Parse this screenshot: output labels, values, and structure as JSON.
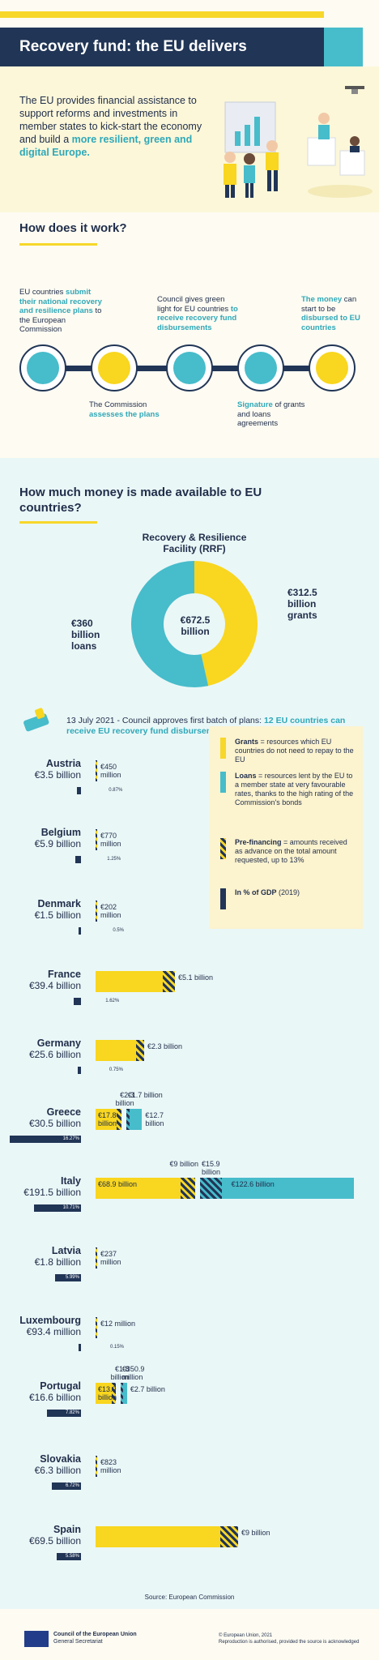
{
  "header": {
    "title": "Recovery fund: the EU delivers"
  },
  "intro": {
    "text": "The EU provides financial assistance to support reforms and investments in member states to kick-start the economy and build a ",
    "highlight": "more resilient, green and digital Europe."
  },
  "how": {
    "title": "How does it work?",
    "steps": [
      {
        "pre": "EU countries ",
        "hl": "submit their national recovery and resilience plans",
        "post": " to the European Commission"
      },
      {
        "pre": "The Commission ",
        "hl": "assesses the plans",
        "post": ""
      },
      {
        "pre": "Council gives green light for EU countries ",
        "hl": "to receive recovery fund disbursements",
        "post": ""
      },
      {
        "pre": "",
        "hl": "Signature",
        "post": " of grants and loans agreements"
      },
      {
        "pre": "",
        "hl": "The money",
        "post": " can start to be ",
        "hl2": "disbursed to EU countries"
      }
    ]
  },
  "money": {
    "title": "How much money is made available to EU countries?",
    "rrf_title": "Recovery & Resilience Facility (RRF)",
    "note_pre": "13 July 2021 - Council approves first batch of plans: ",
    "note_hl": "12 EU countries can receive EU recovery fund disbursements"
  },
  "legend": [
    {
      "term": "Grants",
      "desc": " = resources which EU countries do not need to repay to the EU",
      "color": "#f7d72a"
    },
    {
      "term": "Loans",
      "desc": " = resources lent by the EU to a member state at very favourable rates, thanks to the high rating of the Commission's bonds",
      "color": "#47bccb"
    },
    {
      "term": "Pre-financing",
      "desc": " = amounts received as advance on the total amount requested, up to 13%",
      "color": "hatch"
    },
    {
      "term": "In % of GDP",
      "desc": " (2019)",
      "color": "#213556"
    }
  ],
  "chart_data": [
    {
      "type": "pie",
      "title": "Recovery & Resilience Facility (RRF)",
      "center_label": "€672.5 billion",
      "slices": [
        {
          "name": "grants",
          "label": "€312.5 billion grants",
          "value": 312.5,
          "color": "#f9d61f"
        },
        {
          "name": "loans",
          "label": "€360 billion loans",
          "value": 360,
          "color": "#47bccb"
        }
      ]
    },
    {
      "type": "bar",
      "categories": [
        "Austria",
        "Belgium",
        "Denmark",
        "France",
        "Germany",
        "Greece",
        "Italy",
        "Latvia",
        "Luxembourg",
        "Portugal",
        "Slovakia",
        "Spain"
      ],
      "totals": [
        "€3.5 billion",
        "€5.9 billion",
        "€1.5 billion",
        "€39.4 billion",
        "€25.6 billion",
        "€30.5 billion",
        "€191.5 billion",
        "€1.8 billion",
        "€93.4 million",
        "€16.6 billion",
        "€6.3 billion",
        "€69.5 billion"
      ],
      "gdp_pct": [
        0.87,
        1.25,
        0.5,
        1.62,
        0.75,
        16.27,
        10.71,
        5.99,
        0.15,
        7.82,
        6.72,
        5.58
      ],
      "gdp_labels": [
        "0.87%",
        "1.25%",
        "0.5%",
        "1.62%",
        "0.75%",
        "16.27%",
        "10.71%",
        "5.99%",
        "0.15%",
        "7.82%",
        "6.72%",
        "5.58%"
      ],
      "grants_billion": [
        0.45,
        0.77,
        0.202,
        5.1,
        2.3,
        17.8,
        68.9,
        0.237,
        0.012,
        13.9,
        0.823,
        9
      ],
      "grants_labels": [
        "€450 million",
        "€770 million",
        "€202 million",
        "€5.1 billion",
        "€2.3 billion",
        "€17.8 billion",
        "€68.9 billion",
        "€237 million",
        "€12 million",
        "€13.9 billion",
        "€823 million",
        "€9 billion"
      ],
      "grant_label_inside": [
        false,
        false,
        false,
        false,
        false,
        true,
        true,
        false,
        false,
        true,
        false,
        false
      ],
      "prefinancing_grants_labels": [
        "",
        "",
        "",
        "",
        "",
        "€2.3 billion",
        "€9 billion",
        "",
        "",
        "€1.8 billion",
        "",
        ""
      ],
      "loans_billion": [
        0,
        0,
        0,
        0,
        0,
        12.7,
        122.6,
        0,
        0,
        2.7,
        0,
        0
      ],
      "loans_labels": [
        "",
        "",
        "",
        "",
        "",
        "€12.7 billion",
        "€122.6 billion",
        "",
        "",
        "€2.7 billion",
        "",
        ""
      ],
      "prefinancing_loans_labels": [
        "",
        "",
        "",
        "",
        "",
        "€1.7 billion",
        "€15.9 billion",
        "",
        "",
        "€350.9 million",
        "",
        ""
      ]
    }
  ],
  "source": "Source: European Commission",
  "footer": {
    "org_line1": "Council of the European Union",
    "org_line2": "General Secretariat",
    "copy1": "© European Union, 2021",
    "copy2": "Reproduction is authorised, provided the source is acknowledged"
  }
}
